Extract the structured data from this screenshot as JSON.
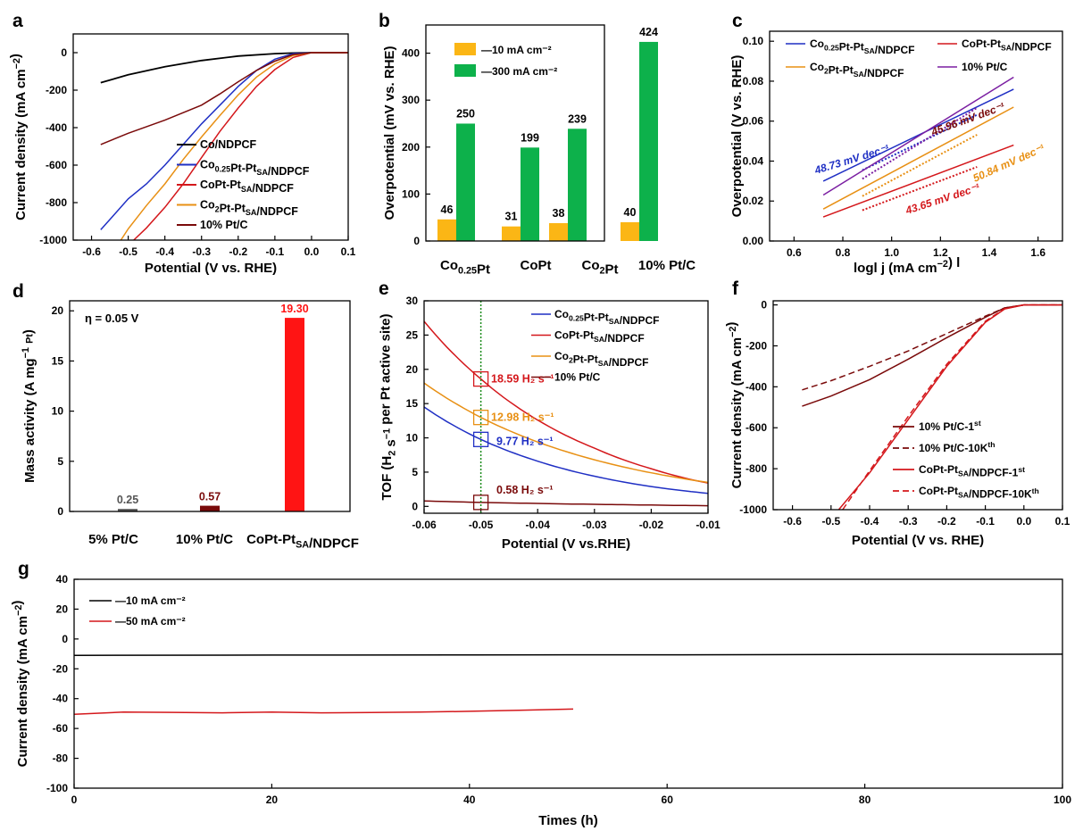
{
  "chart_data": [
    {
      "id": "a",
      "panel_letter": "a",
      "type": "line",
      "xlabel": "Potential (V vs. RHE)",
      "ylabel": "Current density (mA cm⁻²)",
      "xlim": [
        -0.65,
        0.1
      ],
      "ylim": [
        -1000,
        100
      ],
      "xticks": [
        "-0.6",
        "-0.5",
        "-0.4",
        "-0.3",
        "-0.2",
        "-0.1",
        "0.0",
        "0.1"
      ],
      "yticks": [
        "0",
        "-200",
        "-400",
        "-600",
        "-800",
        "-1000"
      ],
      "legend_position": "center-right",
      "series": [
        {
          "name": "Co/NDPCF",
          "color": "#000000",
          "x": [
            -0.575,
            -0.5,
            -0.4,
            -0.3,
            -0.2,
            -0.1,
            -0.05,
            0,
            0.1
          ],
          "y": [
            -160,
            -118,
            -75,
            -42,
            -18,
            -5,
            -2,
            0,
            0
          ]
        },
        {
          "name": "Co0.25Pt-PtSA/NDPCF",
          "color": "#1f2fc4",
          "x": [
            -0.575,
            -0.55,
            -0.5,
            -0.45,
            -0.4,
            -0.35,
            -0.3,
            -0.25,
            -0.2,
            -0.15,
            -0.1,
            -0.05,
            0,
            0.1
          ],
          "y": [
            -945,
            -890,
            -780,
            -700,
            -600,
            -490,
            -380,
            -280,
            -180,
            -95,
            -35,
            -5,
            0,
            0
          ]
        },
        {
          "name": "CoPt-PtSA/NDPCF",
          "color": "#d4171b",
          "x": [
            -0.485,
            -0.45,
            -0.4,
            -0.35,
            -0.3,
            -0.25,
            -0.2,
            -0.15,
            -0.1,
            -0.05,
            0,
            0.1
          ],
          "y": [
            -1000,
            -935,
            -825,
            -700,
            -560,
            -420,
            -295,
            -180,
            -90,
            -25,
            0,
            0
          ]
        },
        {
          "name": "Co2Pt-PtSA/NDPCF",
          "color": "#e89014",
          "x": [
            -0.52,
            -0.5,
            -0.45,
            -0.4,
            -0.35,
            -0.3,
            -0.25,
            -0.2,
            -0.15,
            -0.1,
            -0.05,
            0,
            0.1
          ],
          "y": [
            -1000,
            -940,
            -815,
            -700,
            -570,
            -450,
            -335,
            -225,
            -130,
            -60,
            -15,
            0,
            0
          ]
        },
        {
          "name": "10% Pt/C",
          "color": "#7a0a0a",
          "x": [
            -0.575,
            -0.5,
            -0.4,
            -0.3,
            -0.25,
            -0.2,
            -0.15,
            -0.1,
            -0.05,
            0,
            0.1
          ],
          "y": [
            -490,
            -430,
            -360,
            -280,
            -220,
            -155,
            -95,
            -45,
            -10,
            0,
            0
          ]
        }
      ]
    },
    {
      "id": "b",
      "panel_letter": "b",
      "type": "bar",
      "xlabel": "",
      "ylabel": "Overpotential (mV vs. RHE)",
      "ylim": [
        0,
        460
      ],
      "yticks": [
        "0",
        "100",
        "200",
        "300",
        "400"
      ],
      "categories": [
        "Co0.25Pt",
        "CoPt",
        "Co2Pt",
        "10% Pt/C"
      ],
      "legend_position": "top-left",
      "series": [
        {
          "name": "—10 mA cm⁻²",
          "color": "#fbb615",
          "values": [
            46,
            31,
            38,
            40
          ]
        },
        {
          "name": "—300 mA cm⁻²",
          "color": "#0db14b",
          "values": [
            250,
            199,
            239,
            424
          ]
        }
      ]
    },
    {
      "id": "c",
      "panel_letter": "c",
      "type": "line",
      "xlabel": "logl j (mA cm⁻²) l",
      "ylabel": "Overpotential (V vs. RHE)",
      "xlim": [
        0.5,
        1.7
      ],
      "ylim": [
        0.0,
        0.105
      ],
      "xticks": [
        "0.6",
        "0.8",
        "1.0",
        "1.2",
        "1.4",
        "1.6"
      ],
      "yticks": [
        "0.00",
        "0.02",
        "0.04",
        "0.06",
        "0.08",
        "0.10"
      ],
      "legend_position": "top",
      "series": [
        {
          "name": "Co0.25Pt-PtSA/NDPCF",
          "color": "#1f2fc4",
          "x": [
            0.72,
            1.5
          ],
          "y": [
            0.03,
            0.076
          ]
        },
        {
          "name": "CoPt-PtSA/NDPCF",
          "color": "#d4171b",
          "x": [
            0.72,
            1.5
          ],
          "y": [
            0.012,
            0.048
          ]
        },
        {
          "name": "Co2Pt-PtSA/NDPCF",
          "color": "#e89014",
          "x": [
            0.72,
            1.5
          ],
          "y": [
            0.016,
            0.067
          ]
        },
        {
          "name": "10% Pt/C",
          "color": "#7b1fa2",
          "x": [
            0.72,
            1.5
          ],
          "y": [
            0.023,
            0.082
          ]
        }
      ],
      "annotations": [
        {
          "text": "48.73 mV dec⁻¹",
          "color": "#1f2fc4"
        },
        {
          "text": "45.96 mV dec⁻¹",
          "color": "#7a0a0a"
        },
        {
          "text": "50.84 mV dec⁻¹",
          "color": "#e89014"
        },
        {
          "text": "43.65 mV dec⁻¹",
          "color": "#d4171b"
        }
      ]
    },
    {
      "id": "d",
      "panel_letter": "d",
      "type": "bar",
      "xlabel": "",
      "ylabel": "Mass activity (A mg⁻¹ Pt)",
      "ylim": [
        0,
        21
      ],
      "yticks": [
        "0",
        "5",
        "10",
        "15",
        "20"
      ],
      "note": "η = 0.05 V",
      "categories": [
        "5% Pt/C",
        "10% Pt/C",
        "CoPt-PtSA/NDPCF"
      ],
      "values": [
        0.25,
        0.57,
        19.3
      ],
      "value_labels": [
        "0.25",
        "0.57",
        "19.30"
      ],
      "colors": [
        "#555555",
        "#7a0a0a",
        "#ff1414"
      ]
    },
    {
      "id": "e",
      "panel_letter": "e",
      "type": "line",
      "xlabel": "Potential (V vs.RHE)",
      "ylabel": "TOF (H₂ s⁻¹ per Pt active site)",
      "xlim": [
        -0.06,
        -0.01
      ],
      "ylim": [
        -1,
        30
      ],
      "xticks": [
        "-0.06",
        "-0.05",
        "-0.04",
        "-0.03",
        "-0.02",
        "-0.01"
      ],
      "yticks": [
        "0",
        "5",
        "10",
        "15",
        "20",
        "25",
        "30"
      ],
      "legend_position": "top-right",
      "series": [
        {
          "name": "Co0.25Pt-PtSA/NDPCF",
          "color": "#1f2fc4",
          "x": [
            -0.06,
            -0.05,
            -0.04,
            -0.03,
            -0.02,
            -0.01
          ],
          "y": [
            14.5,
            9.77,
            6.6,
            4.4,
            2.9,
            1.9
          ]
        },
        {
          "name": "CoPt-PtSA/NDPCF",
          "color": "#d4171b",
          "x": [
            -0.06,
            -0.05,
            -0.04,
            -0.03,
            -0.02,
            -0.01
          ],
          "y": [
            27.0,
            18.59,
            12.6,
            8.5,
            5.5,
            3.4
          ]
        },
        {
          "name": "Co2Pt-PtSA/NDPCF",
          "color": "#e89014",
          "x": [
            -0.06,
            -0.05,
            -0.04,
            -0.03,
            -0.02,
            -0.01
          ],
          "y": [
            18.0,
            12.98,
            9.4,
            6.8,
            4.9,
            3.5
          ]
        },
        {
          "name": "10% Pt/C",
          "color": "#7a0a0a",
          "x": [
            -0.06,
            -0.05,
            -0.04,
            -0.03,
            -0.02,
            -0.01
          ],
          "y": [
            0.8,
            0.58,
            0.43,
            0.3,
            0.2,
            0.1
          ]
        }
      ],
      "marker_x": -0.05,
      "annotations": [
        {
          "text": "18.59 H₂ s⁻¹",
          "color": "#d4171b",
          "y": 18.59
        },
        {
          "text": "12.98 H₂ s⁻¹",
          "color": "#e89014",
          "y": 12.98
        },
        {
          "text": "9.77 H₂ s⁻¹",
          "color": "#1f2fc4",
          "y": 9.77
        },
        {
          "text": "0.58 H₂ s⁻¹",
          "color": "#7a0a0a",
          "y": 0.58
        }
      ]
    },
    {
      "id": "f",
      "panel_letter": "f",
      "type": "line",
      "xlabel": "Potential (V vs. RHE)",
      "ylabel": "Current density (mA cm⁻²)",
      "xlim": [
        -0.65,
        0.1
      ],
      "ylim": [
        -1000,
        20
      ],
      "xticks": [
        "-0.6",
        "-0.5",
        "-0.4",
        "-0.3",
        "-0.2",
        "-0.1",
        "0.0",
        "0.1"
      ],
      "yticks": [
        "0",
        "-200",
        "-400",
        "-600",
        "-800",
        "-1000"
      ],
      "legend_position": "bottom-center",
      "series": [
        {
          "name": "10% Pt/C-1st",
          "color": "#7a0a0a",
          "dash": false,
          "x": [
            -0.575,
            -0.5,
            -0.4,
            -0.3,
            -0.2,
            -0.1,
            -0.05,
            0,
            0.1
          ],
          "y": [
            -495,
            -445,
            -365,
            -265,
            -160,
            -60,
            -15,
            0,
            0
          ]
        },
        {
          "name": "10% Pt/C-10Kth",
          "color": "#7a0a0a",
          "dash": true,
          "x": [
            -0.575,
            -0.5,
            -0.4,
            -0.3,
            -0.2,
            -0.1,
            -0.05,
            0,
            0.1
          ],
          "y": [
            -415,
            -370,
            -300,
            -225,
            -140,
            -55,
            -15,
            0,
            0
          ]
        },
        {
          "name": "CoPt-PtSA/NDPCF-1st",
          "color": "#d4171b",
          "dash": false,
          "x": [
            -0.48,
            -0.4,
            -0.3,
            -0.2,
            -0.1,
            -0.05,
            0,
            0.1
          ],
          "y": [
            -1000,
            -820,
            -560,
            -300,
            -85,
            -20,
            0,
            0
          ]
        },
        {
          "name": "CoPt-PtSA/NDPCF-10Kth",
          "color": "#d4171b",
          "dash": true,
          "x": [
            -0.47,
            -0.4,
            -0.3,
            -0.2,
            -0.1,
            -0.05,
            0,
            0.1
          ],
          "y": [
            -1000,
            -810,
            -545,
            -290,
            -80,
            -18,
            0,
            0
          ]
        }
      ]
    },
    {
      "id": "g",
      "panel_letter": "g",
      "type": "line",
      "xlabel": "Times (h)",
      "ylabel": "Current density (mA cm⁻²)",
      "xlim": [
        0,
        100
      ],
      "ylim": [
        -100,
        40
      ],
      "xticks": [
        "0",
        "20",
        "40",
        "60",
        "80",
        "100"
      ],
      "yticks": [
        "40",
        "20",
        "0",
        "-20",
        "-40",
        "-60",
        "-80",
        "-100"
      ],
      "legend_position": "top-left",
      "series": [
        {
          "name": "—10 mA cm⁻²",
          "color": "#000000",
          "x": [
            0,
            20,
            40,
            60,
            80,
            100
          ],
          "y": [
            -11,
            -10.8,
            -10.7,
            -10.6,
            -10.4,
            -10.2
          ]
        },
        {
          "name": "—50 mA cm⁻²",
          "color": "#d4171b",
          "x": [
            0,
            5,
            10,
            15,
            20,
            25,
            30,
            35,
            40,
            45,
            50.5
          ],
          "y": [
            -50.5,
            -49,
            -49.2,
            -49.5,
            -49,
            -49.5,
            -49.3,
            -49,
            -48.5,
            -47.8,
            -47
          ]
        }
      ]
    }
  ]
}
